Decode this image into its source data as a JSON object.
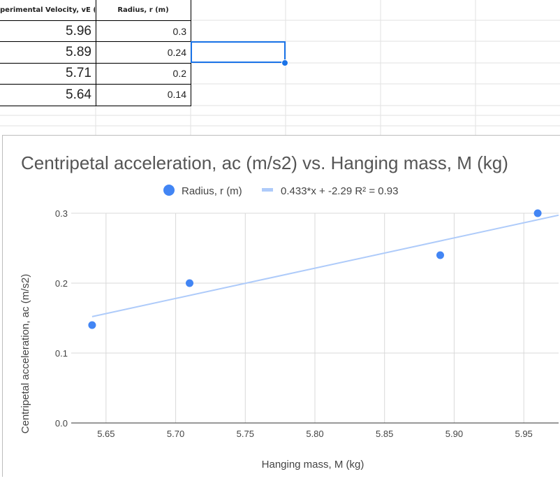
{
  "sheet": {
    "col_a_header": "perimental Velocity, vE (m",
    "col_b_header": "Radius, r (m)",
    "rows": [
      {
        "a": "5.96",
        "b": "0.3"
      },
      {
        "a": "5.89",
        "b": "0.24"
      },
      {
        "a": "5.71",
        "b": "0.2"
      },
      {
        "a": "5.64",
        "b": "0.14"
      }
    ],
    "selection_color": "#1a73e8"
  },
  "chart_data": {
    "type": "scatter",
    "title": "Centripetal acceleration, ac (m/s2) vs. Hanging mass, M (kg)",
    "xlabel": "Hanging mass, M (kg)",
    "ylabel": "Centripetal acceleration, ac (m/s2)",
    "xlim": [
      5.625,
      5.975
    ],
    "ylim": [
      0.0,
      0.3
    ],
    "xticks": [
      "5.65",
      "5.70",
      "5.75",
      "5.80",
      "5.85",
      "5.90",
      "5.95"
    ],
    "yticks": [
      "0.0",
      "0.1",
      "0.2",
      "0.3"
    ],
    "grid": true,
    "legend_position": "top",
    "series": [
      {
        "name": "Radius, r (m)",
        "color": "#4285f4",
        "x": [
          5.96,
          5.89,
          5.71,
          5.64
        ],
        "y": [
          0.3,
          0.24,
          0.2,
          0.14
        ]
      }
    ],
    "trendline": {
      "label": "0.433*x + -2.29 R² = 0.93",
      "slope": 0.433,
      "intercept": -2.29,
      "color": "#aecbfa"
    }
  }
}
